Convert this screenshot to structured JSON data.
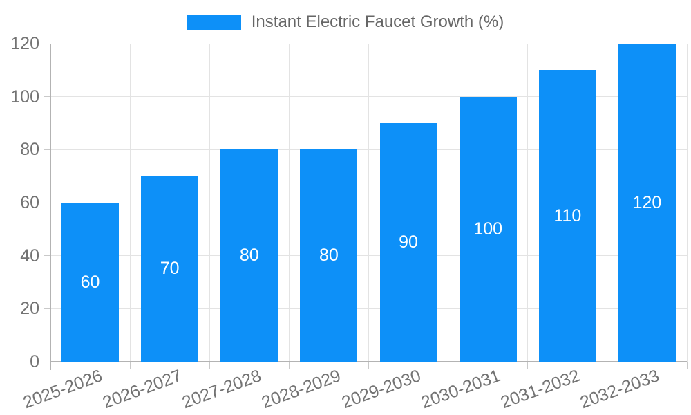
{
  "chart_data": {
    "type": "bar",
    "title": "Instant Electric Faucet Growth (%)",
    "categories": [
      "2025-2026",
      "2026-2027",
      "2027-2028",
      "2028-2029",
      "2029-2030",
      "2030-2031",
      "2031-2032",
      "2032-2033"
    ],
    "values": [
      60,
      70,
      80,
      80,
      90,
      100,
      110,
      120
    ],
    "value_labels": [
      "60",
      "70",
      "80",
      "80",
      "90",
      "100",
      "110",
      "120"
    ],
    "ylim": [
      0,
      120
    ],
    "yticks": [
      0,
      20,
      40,
      60,
      80,
      100,
      120
    ],
    "ytick_labels": [
      "0",
      "20",
      "40",
      "60",
      "80",
      "100",
      "120"
    ],
    "xlabel": "",
    "ylabel": "",
    "grid": true,
    "legend_position": "top",
    "colors": {
      "bar": "#0d90f8",
      "value_text": "#ffffff",
      "grid": "#e3e3e3",
      "axis": "#b3b3b3",
      "tick_text": "#737373",
      "legend_text": "#666666",
      "background": "#ffffff"
    }
  }
}
